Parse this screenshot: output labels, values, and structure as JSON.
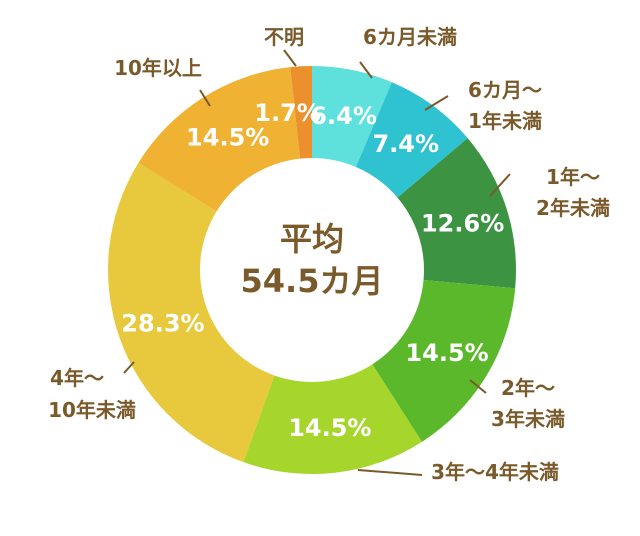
{
  "chart_data": {
    "type": "pie",
    "center_label": {
      "line1": "平均",
      "line2": "54.5カ月"
    },
    "slices": [
      {
        "category": "6カ月未満",
        "value": 6.4,
        "value_label": "6.4%",
        "color": "#5ee0dc",
        "label_lines": [
          "6カ月未満"
        ]
      },
      {
        "category": "6カ月〜1年未満",
        "value": 7.4,
        "value_label": "7.4%",
        "color": "#2fc2d1",
        "label_lines": [
          "6カ月〜",
          "1年未満"
        ]
      },
      {
        "category": "1年〜2年未満",
        "value": 12.6,
        "value_label": "12.6%",
        "color": "#3c9443",
        "label_lines": [
          "1年〜",
          "2年未満"
        ]
      },
      {
        "category": "2年〜3年未満",
        "value": 14.5,
        "value_label": "14.5%",
        "color": "#5ab82a",
        "label_lines": [
          "2年〜",
          "3年未満"
        ]
      },
      {
        "category": "3年〜4年未満",
        "value": 14.5,
        "value_label": "14.5%",
        "color": "#a6d52c",
        "label_lines": [
          "3年〜4年未満"
        ]
      },
      {
        "category": "4年〜10年未満",
        "value": 28.3,
        "value_label": "28.3%",
        "color": "#e8c83c",
        "label_lines": [
          "4年〜",
          "10年未満"
        ]
      },
      {
        "category": "10年以上",
        "value": 14.5,
        "value_label": "14.5%",
        "color": "#f0b232",
        "label_lines": [
          "10年以上"
        ]
      },
      {
        "category": "不明",
        "value": 1.7,
        "value_label": "1.7%",
        "color": "#ec8f2d",
        "label_lines": [
          "不明"
        ]
      }
    ]
  }
}
